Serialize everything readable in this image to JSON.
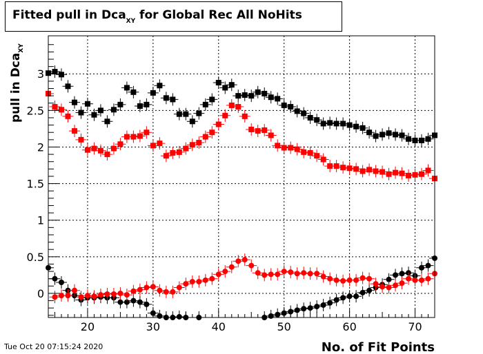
{
  "title": {
    "main": "Fitted pull in Dca",
    "sub": "XY",
    "rest": " for Global Rec All NoHits"
  },
  "timestamp": "Tue Oct 20 07:15:24 2020",
  "chart_data": {
    "type": "scatter",
    "title": "Fitted pull in DcaXY for Global Rec All NoHits",
    "xlabel": "No. of Fit Points",
    "ylabel": {
      "main": "pull in Dca",
      "sub": "XY"
    },
    "xlim": [
      14,
      73
    ],
    "ylim": [
      -0.33,
      3.52
    ],
    "xticks": [
      20,
      30,
      40,
      50,
      60,
      70
    ],
    "yticks": [
      0,
      0.5,
      1,
      1.5,
      2,
      2.5,
      3
    ],
    "ytick_labels": [
      "0",
      "0.5",
      "1",
      "1.5",
      "2",
      "2.5",
      "3"
    ],
    "grid": true,
    "x": [
      14,
      15,
      16,
      17,
      18,
      19,
      20,
      21,
      22,
      23,
      24,
      25,
      26,
      27,
      28,
      29,
      30,
      31,
      32,
      33,
      34,
      35,
      36,
      37,
      38,
      39,
      40,
      41,
      42,
      43,
      44,
      45,
      46,
      47,
      48,
      49,
      50,
      51,
      52,
      53,
      54,
      55,
      56,
      57,
      58,
      59,
      60,
      61,
      62,
      63,
      64,
      65,
      66,
      67,
      68,
      69,
      70,
      71,
      72,
      73
    ],
    "series": [
      {
        "marker": "square",
        "color": "#000000",
        "values": [
          3.01,
          3.03,
          2.99,
          2.83,
          2.61,
          2.47,
          2.59,
          2.44,
          2.5,
          2.35,
          2.51,
          2.58,
          2.81,
          2.75,
          2.56,
          2.58,
          2.74,
          2.84,
          2.67,
          2.65,
          2.45,
          2.45,
          2.35,
          2.46,
          2.58,
          2.65,
          2.88,
          2.81,
          2.85,
          2.7,
          2.71,
          2.7,
          2.75,
          2.73,
          2.68,
          2.66,
          2.57,
          2.55,
          2.49,
          2.46,
          2.4,
          2.37,
          2.32,
          2.33,
          2.32,
          2.32,
          2.3,
          2.28,
          2.26,
          2.2,
          2.15,
          2.17,
          2.19,
          2.17,
          2.16,
          2.11,
          2.09,
          2.09,
          2.11,
          2.16
        ]
      },
      {
        "marker": "square",
        "color": "#ff0000",
        "values": [
          2.73,
          2.55,
          2.51,
          2.42,
          2.22,
          2.1,
          1.96,
          1.98,
          1.95,
          1.9,
          1.98,
          2.04,
          2.14,
          2.14,
          2.15,
          2.2,
          2.02,
          2.05,
          1.88,
          1.92,
          1.93,
          1.98,
          2.03,
          2.06,
          2.14,
          2.2,
          2.31,
          2.43,
          2.57,
          2.55,
          2.42,
          2.24,
          2.22,
          2.23,
          2.16,
          2.02,
          1.99,
          1.99,
          1.97,
          1.93,
          1.92,
          1.88,
          1.83,
          1.74,
          1.74,
          1.72,
          1.71,
          1.7,
          1.67,
          1.69,
          1.67,
          1.66,
          1.63,
          1.65,
          1.64,
          1.61,
          1.62,
          1.63,
          1.68,
          1.57
        ]
      },
      {
        "marker": "circle",
        "color": "#000000",
        "values": [
          0.35,
          0.2,
          0.15,
          0.04,
          -0.03,
          -0.09,
          -0.06,
          -0.06,
          -0.05,
          -0.06,
          -0.06,
          -0.12,
          -0.12,
          -0.1,
          -0.12,
          -0.15,
          -0.27,
          -0.31,
          -0.33,
          -0.33,
          -0.32,
          -0.33,
          null,
          -0.33,
          null,
          null,
          null,
          null,
          null,
          null,
          null,
          null,
          null,
          -0.33,
          -0.31,
          -0.29,
          -0.27,
          -0.25,
          -0.23,
          -0.21,
          -0.2,
          -0.18,
          -0.16,
          -0.13,
          -0.09,
          -0.06,
          -0.04,
          -0.04,
          0.01,
          0.04,
          0.08,
          0.12,
          0.19,
          0.25,
          0.27,
          0.28,
          0.24,
          0.35,
          0.38,
          0.48
        ]
      },
      {
        "marker": "circle",
        "color": "#ff0000",
        "values": [
          null,
          -0.05,
          -0.03,
          -0.03,
          0.04,
          -0.05,
          -0.03,
          -0.04,
          -0.02,
          -0.01,
          -0.01,
          0.0,
          -0.02,
          0.03,
          0.05,
          0.08,
          0.09,
          0.04,
          0.02,
          0.02,
          0.08,
          0.13,
          0.16,
          0.16,
          0.18,
          0.2,
          0.26,
          0.3,
          0.36,
          0.44,
          0.46,
          0.38,
          0.28,
          0.25,
          0.26,
          0.26,
          0.3,
          0.29,
          0.27,
          0.28,
          0.27,
          0.27,
          0.23,
          0.2,
          0.18,
          0.17,
          0.18,
          0.18,
          0.21,
          0.2,
          0.13,
          0.09,
          0.08,
          0.11,
          0.14,
          0.2,
          0.18,
          0.18,
          0.2,
          0.27
        ]
      }
    ]
  }
}
